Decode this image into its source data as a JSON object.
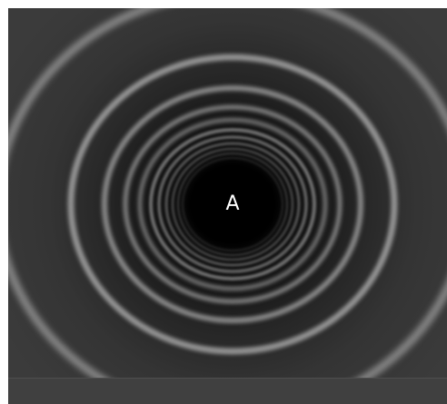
{
  "figure": {
    "center_label": "A",
    "colors": {
      "background": "#3b3b3b",
      "center": "#000000",
      "ring_light": "#9a9a9a",
      "ring_dark": "#0f0f0f",
      "label": "#ffffff",
      "page_border": "#ffffff",
      "bottom_strip": "#404040"
    }
  }
}
